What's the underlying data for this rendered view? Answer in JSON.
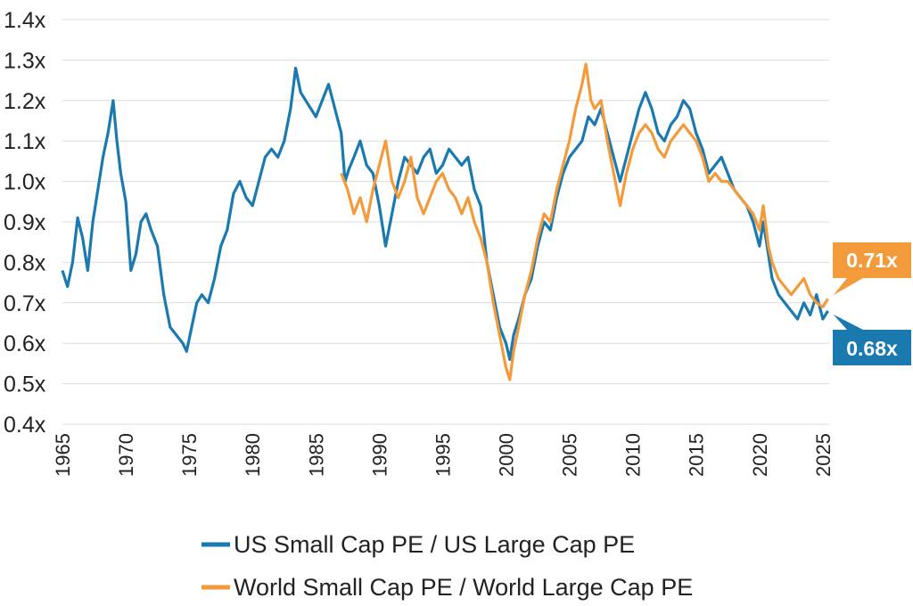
{
  "colors": {
    "us": "#1a7ab0",
    "world": "#f39a3a",
    "grid": "#dcdcdc",
    "text": "#222222"
  },
  "chart_data": {
    "type": "line",
    "title": "",
    "xlabel": "",
    "ylabel": "",
    "xlim": [
      1965,
      2025.5
    ],
    "ylim": [
      0.4,
      1.4
    ],
    "grid": true,
    "legend_position": "bottom",
    "y_ticks": [
      "0.4x",
      "0.5x",
      "0.6x",
      "0.7x",
      "0.8x",
      "0.9x",
      "1.0x",
      "1.1x",
      "1.2x",
      "1.3x",
      "1.4x"
    ],
    "x_ticks": [
      "1965",
      "1970",
      "1975",
      "1980",
      "1985",
      "1990",
      "1995",
      "2000",
      "2005",
      "2010",
      "2015",
      "2020",
      "2025"
    ],
    "series": [
      {
        "name": "US Small Cap PE / US Large Cap PE",
        "color": "#1a7ab0",
        "end_label": "0.68x",
        "points": [
          [
            1965.0,
            0.78
          ],
          [
            1965.4,
            0.74
          ],
          [
            1965.8,
            0.8
          ],
          [
            1966.2,
            0.91
          ],
          [
            1966.6,
            0.86
          ],
          [
            1967.0,
            0.78
          ],
          [
            1967.4,
            0.9
          ],
          [
            1967.8,
            0.98
          ],
          [
            1968.2,
            1.06
          ],
          [
            1968.6,
            1.12
          ],
          [
            1969.0,
            1.2
          ],
          [
            1969.3,
            1.1
          ],
          [
            1969.6,
            1.02
          ],
          [
            1970.0,
            0.95
          ],
          [
            1970.4,
            0.78
          ],
          [
            1970.8,
            0.82
          ],
          [
            1971.2,
            0.9
          ],
          [
            1971.6,
            0.92
          ],
          [
            1972.0,
            0.88
          ],
          [
            1972.5,
            0.84
          ],
          [
            1973.0,
            0.72
          ],
          [
            1973.5,
            0.64
          ],
          [
            1974.0,
            0.62
          ],
          [
            1974.5,
            0.6
          ],
          [
            1974.8,
            0.58
          ],
          [
            1975.2,
            0.64
          ],
          [
            1975.6,
            0.7
          ],
          [
            1976.0,
            0.72
          ],
          [
            1976.5,
            0.7
          ],
          [
            1977.0,
            0.76
          ],
          [
            1977.5,
            0.84
          ],
          [
            1978.0,
            0.88
          ],
          [
            1978.5,
            0.97
          ],
          [
            1979.0,
            1.0
          ],
          [
            1979.5,
            0.96
          ],
          [
            1980.0,
            0.94
          ],
          [
            1980.5,
            1.0
          ],
          [
            1981.0,
            1.06
          ],
          [
            1981.5,
            1.08
          ],
          [
            1982.0,
            1.06
          ],
          [
            1982.5,
            1.1
          ],
          [
            1983.0,
            1.18
          ],
          [
            1983.4,
            1.28
          ],
          [
            1983.8,
            1.22
          ],
          [
            1984.2,
            1.2
          ],
          [
            1984.6,
            1.18
          ],
          [
            1985.0,
            1.16
          ],
          [
            1985.5,
            1.2
          ],
          [
            1986.0,
            1.24
          ],
          [
            1986.5,
            1.18
          ],
          [
            1987.0,
            1.12
          ],
          [
            1987.3,
            1.0
          ],
          [
            1987.6,
            1.03
          ],
          [
            1988.0,
            1.06
          ],
          [
            1988.5,
            1.1
          ],
          [
            1989.0,
            1.04
          ],
          [
            1989.5,
            1.02
          ],
          [
            1990.0,
            0.94
          ],
          [
            1990.5,
            0.84
          ],
          [
            1991.0,
            0.92
          ],
          [
            1991.5,
            1.0
          ],
          [
            1992.0,
            1.06
          ],
          [
            1992.5,
            1.04
          ],
          [
            1993.0,
            1.02
          ],
          [
            1993.5,
            1.06
          ],
          [
            1994.0,
            1.08
          ],
          [
            1994.5,
            1.02
          ],
          [
            1995.0,
            1.04
          ],
          [
            1995.5,
            1.08
          ],
          [
            1996.0,
            1.06
          ],
          [
            1996.5,
            1.04
          ],
          [
            1997.0,
            1.06
          ],
          [
            1997.5,
            0.98
          ],
          [
            1998.0,
            0.94
          ],
          [
            1998.5,
            0.8
          ],
          [
            1999.0,
            0.72
          ],
          [
            1999.5,
            0.64
          ],
          [
            2000.0,
            0.6
          ],
          [
            2000.3,
            0.56
          ],
          [
            2000.6,
            0.62
          ],
          [
            2001.0,
            0.66
          ],
          [
            2001.5,
            0.72
          ],
          [
            2002.0,
            0.76
          ],
          [
            2002.5,
            0.84
          ],
          [
            2003.0,
            0.9
          ],
          [
            2003.5,
            0.88
          ],
          [
            2004.0,
            0.96
          ],
          [
            2004.5,
            1.02
          ],
          [
            2005.0,
            1.06
          ],
          [
            2005.5,
            1.08
          ],
          [
            2006.0,
            1.1
          ],
          [
            2006.5,
            1.16
          ],
          [
            2007.0,
            1.14
          ],
          [
            2007.5,
            1.18
          ],
          [
            2008.0,
            1.12
          ],
          [
            2008.5,
            1.06
          ],
          [
            2009.0,
            1.0
          ],
          [
            2009.5,
            1.06
          ],
          [
            2010.0,
            1.12
          ],
          [
            2010.5,
            1.18
          ],
          [
            2011.0,
            1.22
          ],
          [
            2011.5,
            1.18
          ],
          [
            2012.0,
            1.12
          ],
          [
            2012.5,
            1.1
          ],
          [
            2013.0,
            1.14
          ],
          [
            2013.5,
            1.16
          ],
          [
            2014.0,
            1.2
          ],
          [
            2014.5,
            1.18
          ],
          [
            2015.0,
            1.12
          ],
          [
            2015.5,
            1.08
          ],
          [
            2016.0,
            1.02
          ],
          [
            2016.5,
            1.04
          ],
          [
            2017.0,
            1.06
          ],
          [
            2017.5,
            1.02
          ],
          [
            2018.0,
            0.98
          ],
          [
            2018.5,
            0.96
          ],
          [
            2019.0,
            0.94
          ],
          [
            2019.5,
            0.9
          ],
          [
            2020.0,
            0.84
          ],
          [
            2020.3,
            0.9
          ],
          [
            2020.7,
            0.82
          ],
          [
            2021.0,
            0.76
          ],
          [
            2021.5,
            0.72
          ],
          [
            2022.0,
            0.7
          ],
          [
            2022.5,
            0.68
          ],
          [
            2023.0,
            0.66
          ],
          [
            2023.5,
            0.7
          ],
          [
            2024.0,
            0.67
          ],
          [
            2024.5,
            0.72
          ],
          [
            2025.0,
            0.66
          ],
          [
            2025.4,
            0.68
          ]
        ]
      },
      {
        "name": "World Small Cap PE / World Large Cap PE",
        "color": "#f39a3a",
        "end_label": "0.71x",
        "points": [
          [
            1987.0,
            1.02
          ],
          [
            1987.5,
            0.98
          ],
          [
            1988.0,
            0.92
          ],
          [
            1988.5,
            0.96
          ],
          [
            1989.0,
            0.9
          ],
          [
            1989.5,
            0.98
          ],
          [
            1990.0,
            1.04
          ],
          [
            1990.5,
            1.1
          ],
          [
            1991.0,
            1.0
          ],
          [
            1991.5,
            0.96
          ],
          [
            1992.0,
            1.0
          ],
          [
            1992.5,
            1.06
          ],
          [
            1993.0,
            0.96
          ],
          [
            1993.5,
            0.92
          ],
          [
            1994.0,
            0.96
          ],
          [
            1994.5,
            1.0
          ],
          [
            1995.0,
            1.02
          ],
          [
            1995.5,
            0.98
          ],
          [
            1996.0,
            0.96
          ],
          [
            1996.5,
            0.92
          ],
          [
            1997.0,
            0.96
          ],
          [
            1997.5,
            0.9
          ],
          [
            1998.0,
            0.86
          ],
          [
            1998.5,
            0.8
          ],
          [
            1999.0,
            0.7
          ],
          [
            1999.5,
            0.62
          ],
          [
            2000.0,
            0.54
          ],
          [
            2000.3,
            0.51
          ],
          [
            2000.6,
            0.58
          ],
          [
            2001.0,
            0.64
          ],
          [
            2001.5,
            0.72
          ],
          [
            2002.0,
            0.78
          ],
          [
            2002.5,
            0.86
          ],
          [
            2003.0,
            0.92
          ],
          [
            2003.5,
            0.9
          ],
          [
            2004.0,
            0.98
          ],
          [
            2004.5,
            1.04
          ],
          [
            2005.0,
            1.1
          ],
          [
            2005.5,
            1.18
          ],
          [
            2006.0,
            1.24
          ],
          [
            2006.3,
            1.29
          ],
          [
            2006.7,
            1.2
          ],
          [
            2007.0,
            1.18
          ],
          [
            2007.5,
            1.2
          ],
          [
            2008.0,
            1.1
          ],
          [
            2008.5,
            1.02
          ],
          [
            2009.0,
            0.94
          ],
          [
            2009.5,
            1.02
          ],
          [
            2010.0,
            1.08
          ],
          [
            2010.5,
            1.12
          ],
          [
            2011.0,
            1.14
          ],
          [
            2011.5,
            1.12
          ],
          [
            2012.0,
            1.08
          ],
          [
            2012.5,
            1.06
          ],
          [
            2013.0,
            1.1
          ],
          [
            2013.5,
            1.12
          ],
          [
            2014.0,
            1.14
          ],
          [
            2014.5,
            1.12
          ],
          [
            2015.0,
            1.1
          ],
          [
            2015.5,
            1.06
          ],
          [
            2016.0,
            1.0
          ],
          [
            2016.5,
            1.02
          ],
          [
            2017.0,
            1.0
          ],
          [
            2017.5,
            1.0
          ],
          [
            2018.0,
            0.98
          ],
          [
            2018.5,
            0.96
          ],
          [
            2019.0,
            0.94
          ],
          [
            2019.5,
            0.92
          ],
          [
            2020.0,
            0.88
          ],
          [
            2020.3,
            0.94
          ],
          [
            2020.7,
            0.84
          ],
          [
            2021.0,
            0.8
          ],
          [
            2021.5,
            0.76
          ],
          [
            2022.0,
            0.74
          ],
          [
            2022.5,
            0.72
          ],
          [
            2023.0,
            0.74
          ],
          [
            2023.5,
            0.76
          ],
          [
            2024.0,
            0.72
          ],
          [
            2024.5,
            0.7
          ],
          [
            2025.0,
            0.69
          ],
          [
            2025.4,
            0.71
          ]
        ]
      }
    ]
  }
}
